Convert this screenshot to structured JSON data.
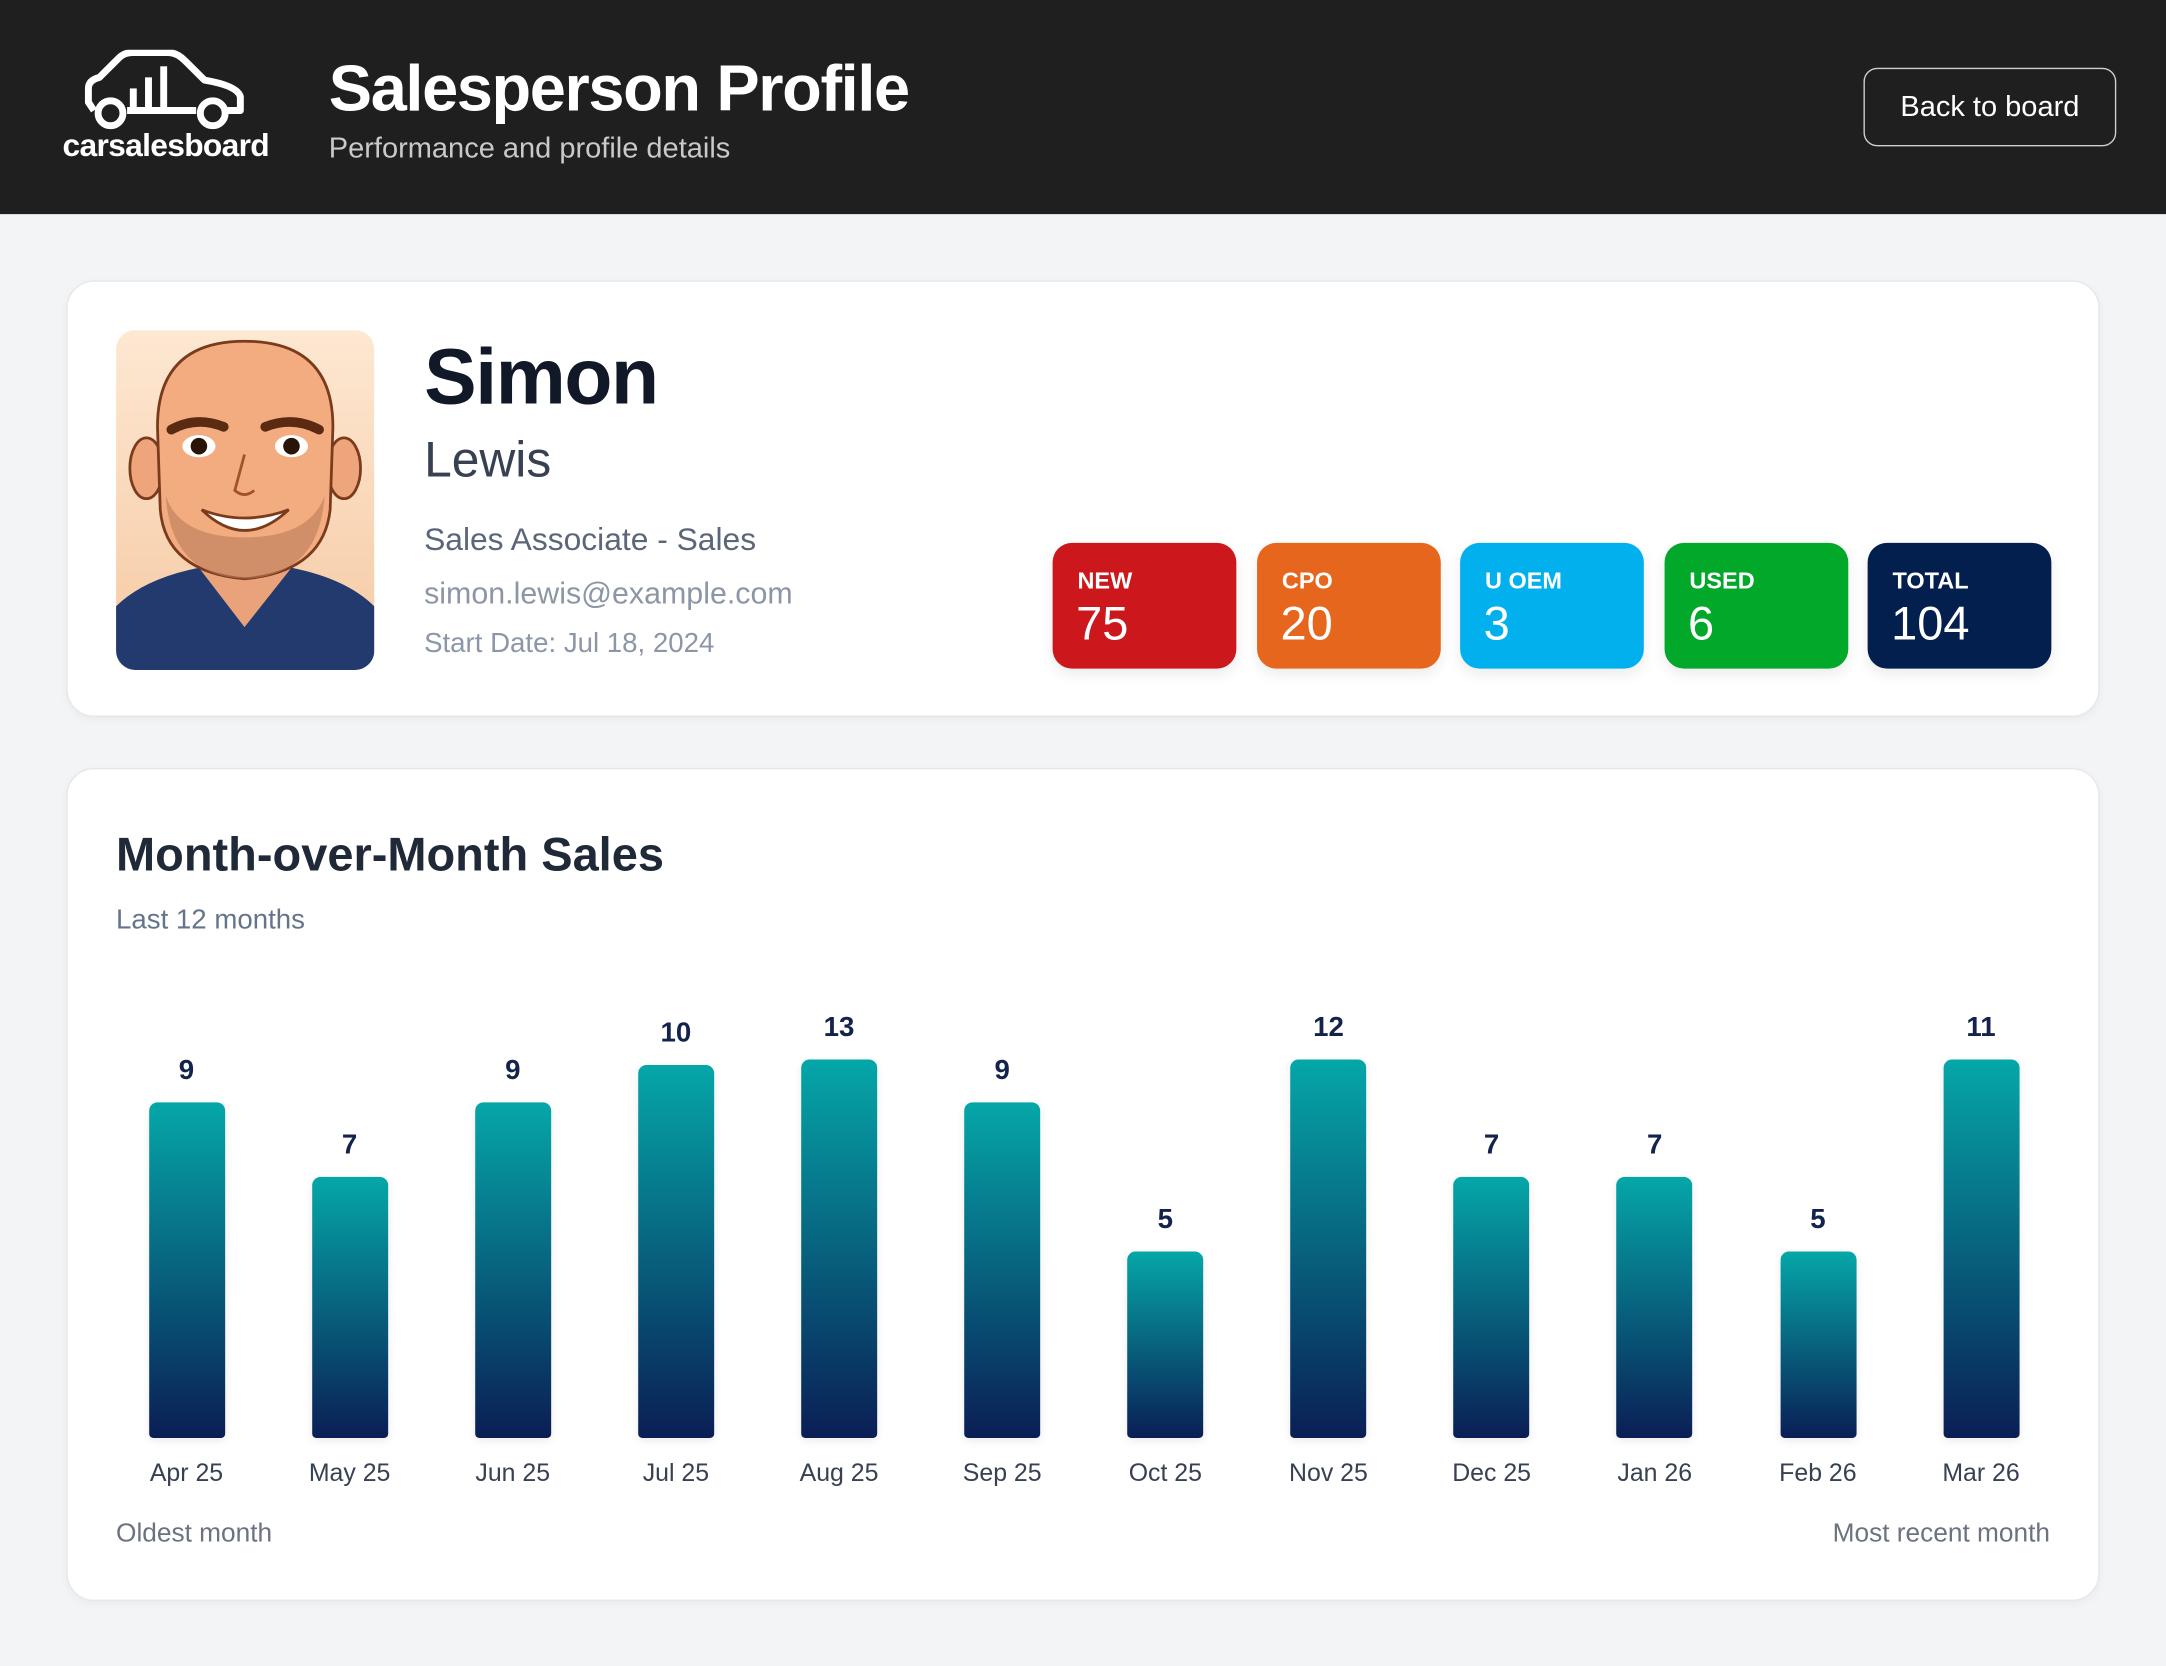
{
  "header": {
    "logo_text": "carsalesboard",
    "title": "Salesperson Profile",
    "subtitle": "Performance and profile details",
    "back_label": "Back to board"
  },
  "profile": {
    "first_name": "Simon",
    "last_name": "Lewis",
    "role": "Sales Associate - Sales",
    "email": "simon.lewis@example.com",
    "start_date": "Start Date: Jul 18, 2024",
    "stats": [
      {
        "label": "NEW",
        "value": "75",
        "color": "#cc181c"
      },
      {
        "label": "CPO",
        "value": "20",
        "color": "#e5661c"
      },
      {
        "label": "U OEM",
        "value": "3",
        "color": "#03b0ee"
      },
      {
        "label": "USED",
        "value": "6",
        "color": "#02a82a"
      },
      {
        "label": "TOTAL",
        "value": "104",
        "color": "#021f4e"
      }
    ]
  },
  "sales": {
    "title": "Month-over-Month Sales",
    "subtitle": "Last 12 months",
    "oldest_label": "Oldest month",
    "recent_label": "Most recent month"
  },
  "chart_data": {
    "type": "bar",
    "categories": [
      "Apr 25",
      "May 25",
      "Jun 25",
      "Jul 25",
      "Aug 25",
      "Sep 25",
      "Oct 25",
      "Nov 25",
      "Dec 25",
      "Jan 26",
      "Feb 26",
      "Mar 26"
    ],
    "values": [
      9,
      7,
      9,
      10,
      13,
      9,
      5,
      12,
      7,
      7,
      5,
      11
    ],
    "title": "Month-over-Month Sales",
    "bar_gradient": [
      "#05a7a8",
      "#0a1e55"
    ],
    "grid": false
  }
}
